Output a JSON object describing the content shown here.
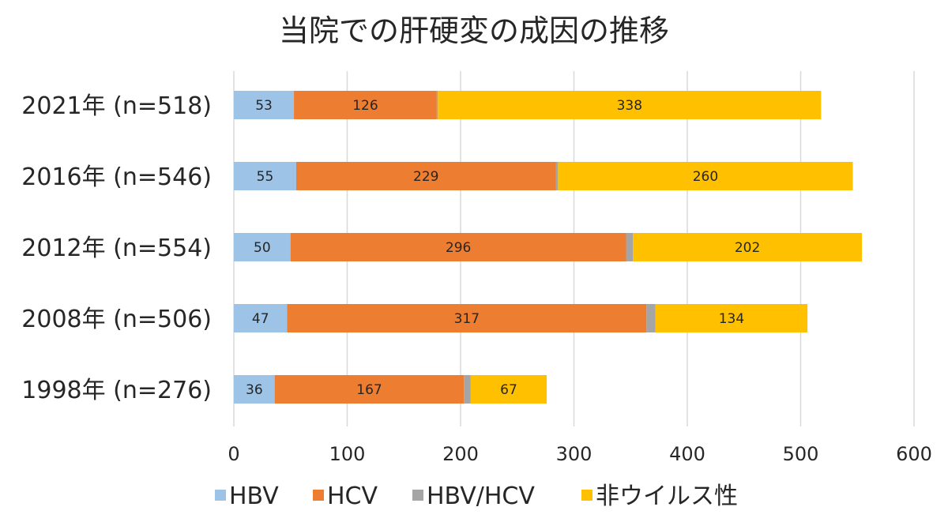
{
  "chart_data": {
    "type": "bar",
    "orientation": "horizontal",
    "stacked": true,
    "title": "当院での肝硬変の成因の推移",
    "xlabel": "",
    "ylabel": "",
    "xlim": [
      0,
      600
    ],
    "xticks": [
      "0",
      "100",
      "200",
      "300",
      "400",
      "500",
      "600"
    ],
    "grid": true,
    "legend_position": "bottom",
    "categories": [
      "2021年 (n=518)",
      "2016年 (n=546)",
      "2012年 (n=554)",
      "2008年 (n=506)",
      "1998年 (n=276)"
    ],
    "series": [
      {
        "name": "HBV",
        "color": "#9DC3E6",
        "values": [
          53,
          55,
          50,
          47,
          36
        ]
      },
      {
        "name": "HCV",
        "color": "#ED7D31",
        "values": [
          126,
          229,
          296,
          317,
          167
        ]
      },
      {
        "name": "HBV/HCV",
        "color": "#A5A5A5",
        "values": [
          1,
          2,
          6,
          8,
          6
        ]
      },
      {
        "name": "非ウイルス性",
        "color": "#FFC000",
        "values": [
          338,
          260,
          202,
          134,
          67
        ]
      }
    ]
  }
}
